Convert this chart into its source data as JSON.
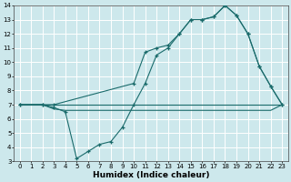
{
  "title": "",
  "xlabel": "Humidex (Indice chaleur)",
  "xlim": [
    -0.5,
    23.5
  ],
  "ylim": [
    3,
    14
  ],
  "yticks": [
    3,
    4,
    5,
    6,
    7,
    8,
    9,
    10,
    11,
    12,
    13,
    14
  ],
  "xticks": [
    0,
    1,
    2,
    3,
    4,
    5,
    6,
    7,
    8,
    9,
    10,
    11,
    12,
    13,
    14,
    15,
    16,
    17,
    18,
    19,
    20,
    21,
    22,
    23
  ],
  "bg_color": "#cde8ec",
  "grid_color": "#ffffff",
  "line_color": "#1a6b6b",
  "line1_x": [
    0,
    23
  ],
  "line1_y": [
    7.0,
    7.0
  ],
  "line2_x": [
    0,
    2,
    3,
    4,
    5,
    6,
    7,
    8,
    9,
    10,
    11,
    12,
    13,
    14,
    15,
    16,
    17,
    18,
    19,
    20,
    21,
    22,
    23
  ],
  "line2_y": [
    7.0,
    7.0,
    6.8,
    6.5,
    3.2,
    3.7,
    4.2,
    4.4,
    5.4,
    7.0,
    8.5,
    10.5,
    11.0,
    12.0,
    13.0,
    13.0,
    13.2,
    14.0,
    13.3,
    12.0,
    9.7,
    8.3,
    7.0
  ],
  "line3_x": [
    0,
    2,
    3,
    10,
    11,
    12,
    13,
    14,
    15,
    16,
    17,
    18,
    19,
    20,
    21,
    22,
    23
  ],
  "line3_y": [
    7.0,
    7.0,
    7.0,
    8.5,
    10.7,
    11.0,
    11.2,
    12.0,
    13.0,
    13.0,
    13.2,
    14.0,
    13.3,
    12.0,
    9.7,
    8.3,
    7.0
  ],
  "line4_x": [
    0,
    2,
    3,
    4,
    5,
    6,
    7,
    8,
    9,
    10,
    11,
    12,
    13,
    14,
    15,
    16,
    17,
    18,
    19,
    20,
    21,
    22,
    23
  ],
  "line4_y": [
    7.0,
    7.0,
    6.7,
    6.6,
    6.6,
    6.6,
    6.6,
    6.6,
    6.6,
    6.6,
    6.6,
    6.6,
    6.6,
    6.6,
    6.6,
    6.6,
    6.6,
    6.6,
    6.6,
    6.6,
    6.6,
    6.6,
    7.0
  ],
  "xlabel_fontsize": 6.5,
  "tick_fontsize": 5
}
